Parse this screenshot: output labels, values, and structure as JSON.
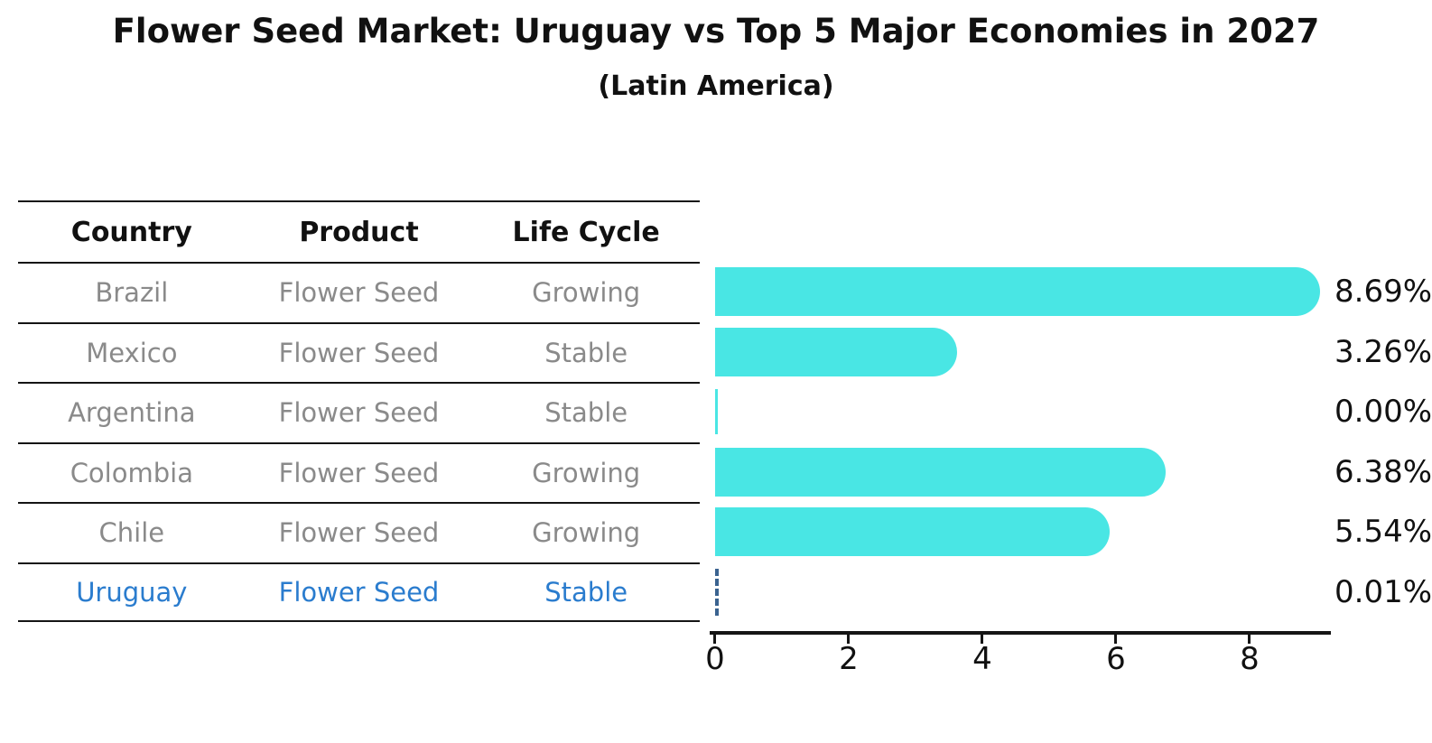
{
  "title": "Flower Seed Market: Uruguay vs Top 5 Major Economies in 2027",
  "subtitle": "(Latin America)",
  "table": {
    "headers": {
      "country": "Country",
      "product": "Product",
      "life_cycle": "Life Cycle"
    },
    "rows": [
      {
        "country": "Brazil",
        "product": "Flower Seed",
        "life_cycle": "Growing"
      },
      {
        "country": "Mexico",
        "product": "Flower Seed",
        "life_cycle": "Stable"
      },
      {
        "country": "Argentina",
        "product": "Flower Seed",
        "life_cycle": "Stable"
      },
      {
        "country": "Colombia",
        "product": "Flower Seed",
        "life_cycle": "Growing"
      },
      {
        "country": "Chile",
        "product": "Flower Seed",
        "life_cycle": "Growing"
      },
      {
        "country": "Uruguay",
        "product": "Flower Seed",
        "life_cycle": "Stable"
      }
    ]
  },
  "chart_data": {
    "type": "bar",
    "orientation": "horizontal",
    "title": "Flower Seed Market: Uruguay vs Top 5 Major Economies in 2027",
    "subtitle": "(Latin America)",
    "categories": [
      "Brazil",
      "Mexico",
      "Argentina",
      "Colombia",
      "Chile",
      "Uruguay"
    ],
    "values": [
      8.69,
      3.26,
      0.0,
      6.38,
      5.54,
      0.01
    ],
    "value_labels": [
      "8.69%",
      "3.26%",
      "0.00%",
      "6.38%",
      "5.54%",
      "0.01%"
    ],
    "x_ticks": [
      "0",
      "2",
      "4",
      "6",
      "8"
    ],
    "xlim": [
      0,
      9.2
    ],
    "grid": false,
    "legend": false,
    "bar_color": "#49E6E4",
    "highlight_category": "Uruguay",
    "highlight_text_color": "#2A7CCE",
    "highlight_bar_border_color": "#3B6390",
    "row_text_color": "#8A8A8A"
  }
}
